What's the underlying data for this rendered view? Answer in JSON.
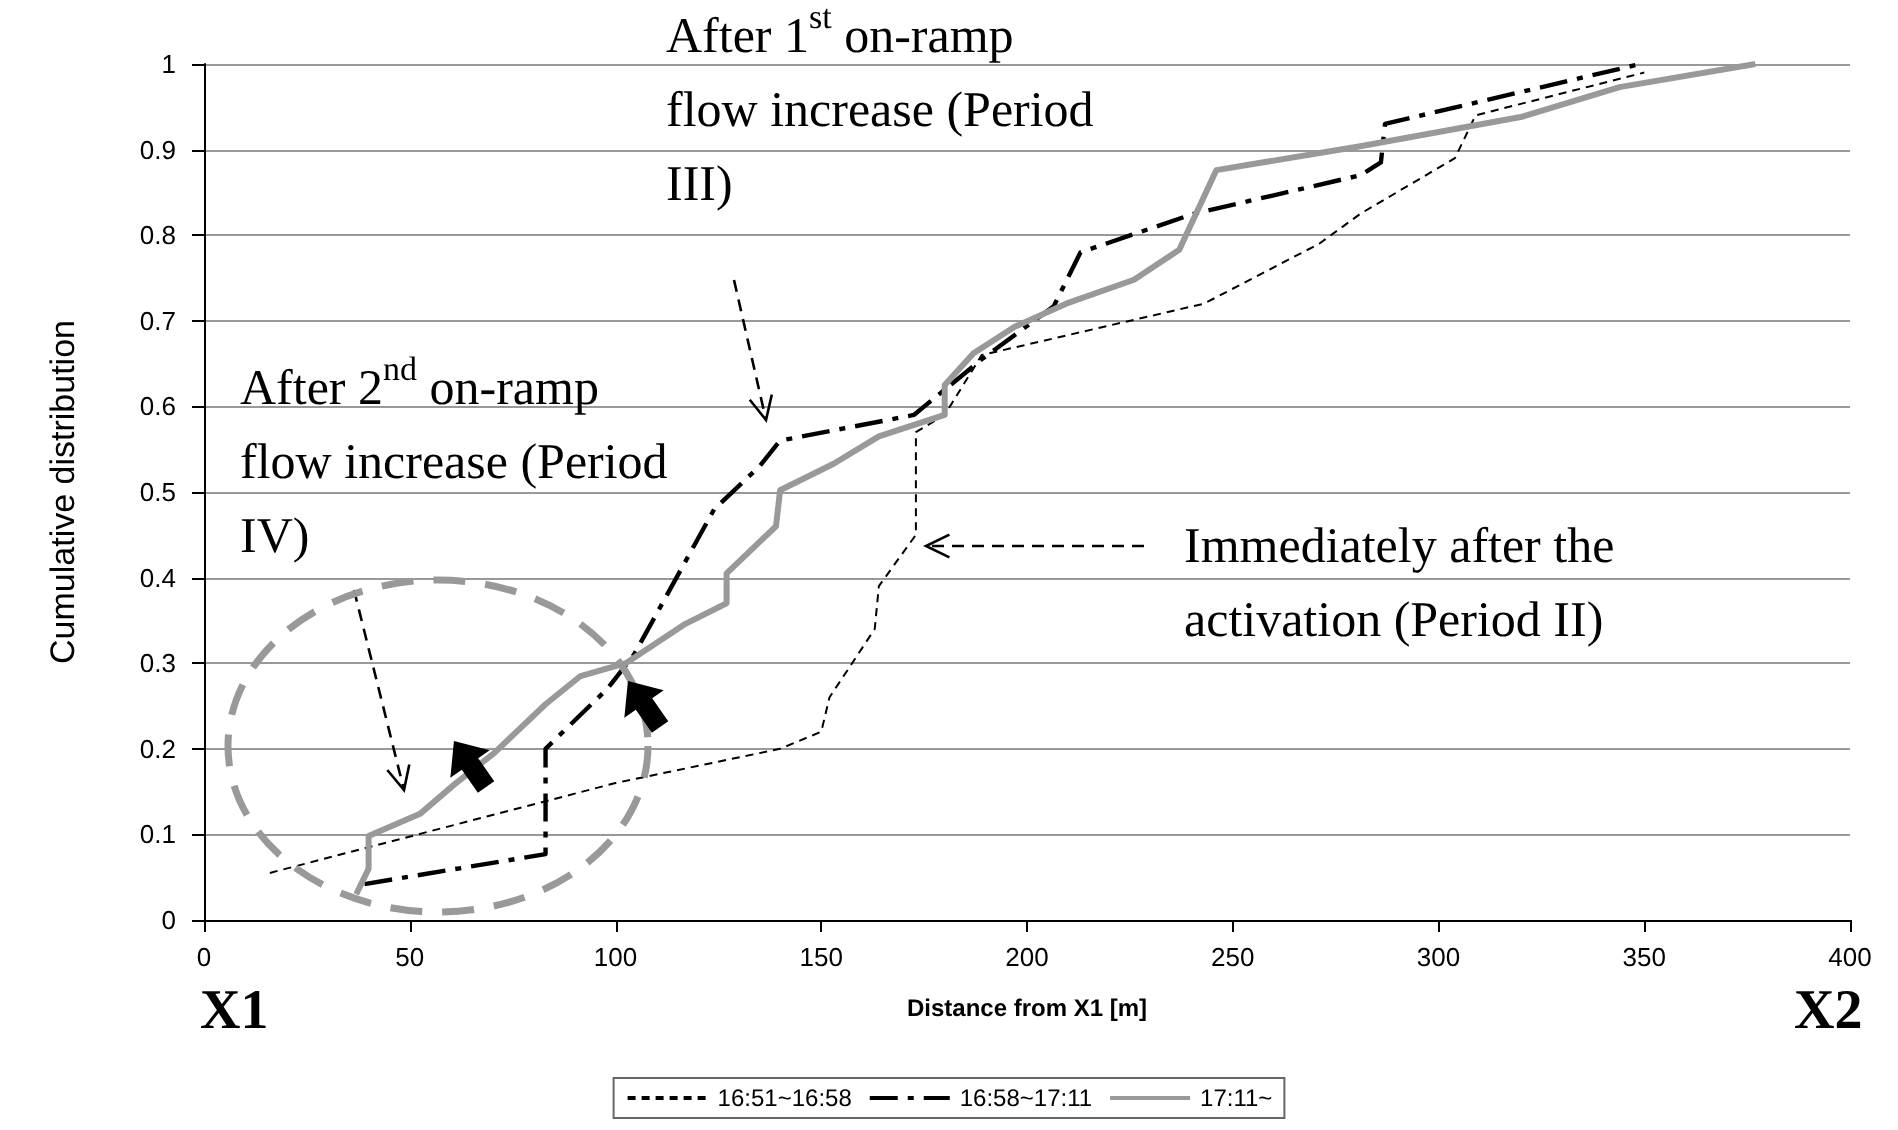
{
  "chart_data": {
    "type": "line",
    "xlabel": "Distance from X1 [m]",
    "ylabel": "Cumulative distribution",
    "xlim": [
      0,
      400
    ],
    "xticks": [
      0,
      50,
      100,
      150,
      200,
      250,
      300,
      350,
      400
    ],
    "ylim": [
      0,
      1
    ],
    "yticks": [
      0,
      0.1,
      0.2,
      0.3,
      0.4,
      0.5,
      0.6,
      0.7,
      0.8,
      0.9,
      1
    ],
    "grid": "y",
    "legend": "bottom",
    "marker": "none",
    "series": [
      {
        "name": "16:51~16:58",
        "color": "#000000",
        "line_style": "dashed",
        "x": [
          16,
          100,
          140,
          150,
          152,
          163,
          164,
          173,
          173,
          180,
          189,
          243,
          271,
          281,
          304,
          309,
          350
        ],
        "values": [
          0.055,
          0.16,
          0.2,
          0.22,
          0.26,
          0.34,
          0.39,
          0.45,
          0.57,
          0.59,
          0.66,
          0.72,
          0.79,
          0.825,
          0.89,
          0.94,
          0.99
        ]
      },
      {
        "name": "16:58~17:11",
        "color": "#000000",
        "line_style": "dashdot",
        "x": [
          39,
          83,
          83,
          98,
          104.5,
          124,
          135,
          140,
          172.5,
          189,
          206.5,
          213,
          240.5,
          281,
          286,
          287,
          349
        ],
        "values": [
          0.042,
          0.077,
          0.2,
          0.27,
          0.31,
          0.48,
          0.53,
          0.56,
          0.59,
          0.655,
          0.717,
          0.78,
          0.825,
          0.87,
          0.885,
          0.93,
          1.0
        ]
      },
      {
        "name": "17:11~",
        "color": "#999999",
        "line_style": "solid",
        "x": [
          37,
          40,
          40,
          52.5,
          61,
          70.5,
          83,
          91.5,
          102.5,
          117,
          127,
          127,
          139,
          140,
          153,
          164,
          180,
          180,
          187,
          197,
          209.5,
          226,
          237,
          246,
          281,
          320,
          344,
          377
        ],
        "values": [
          0.03,
          0.06,
          0.098,
          0.124,
          0.159,
          0.195,
          0.252,
          0.285,
          0.3,
          0.346,
          0.37,
          0.405,
          0.46,
          0.502,
          0.533,
          0.565,
          0.59,
          0.625,
          0.662,
          0.693,
          0.72,
          0.748,
          0.783,
          0.876,
          0.904,
          0.938,
          0.973,
          1.0
        ]
      }
    ],
    "annotations": [
      "After 1$^{st}$ on-ramp flow increase (Period III)",
      "After 2$^{nd}$ on-ramp flow increase (Period IV)",
      "Immediately after the activation (Period II)",
      "X1",
      "X2"
    ]
  }
}
